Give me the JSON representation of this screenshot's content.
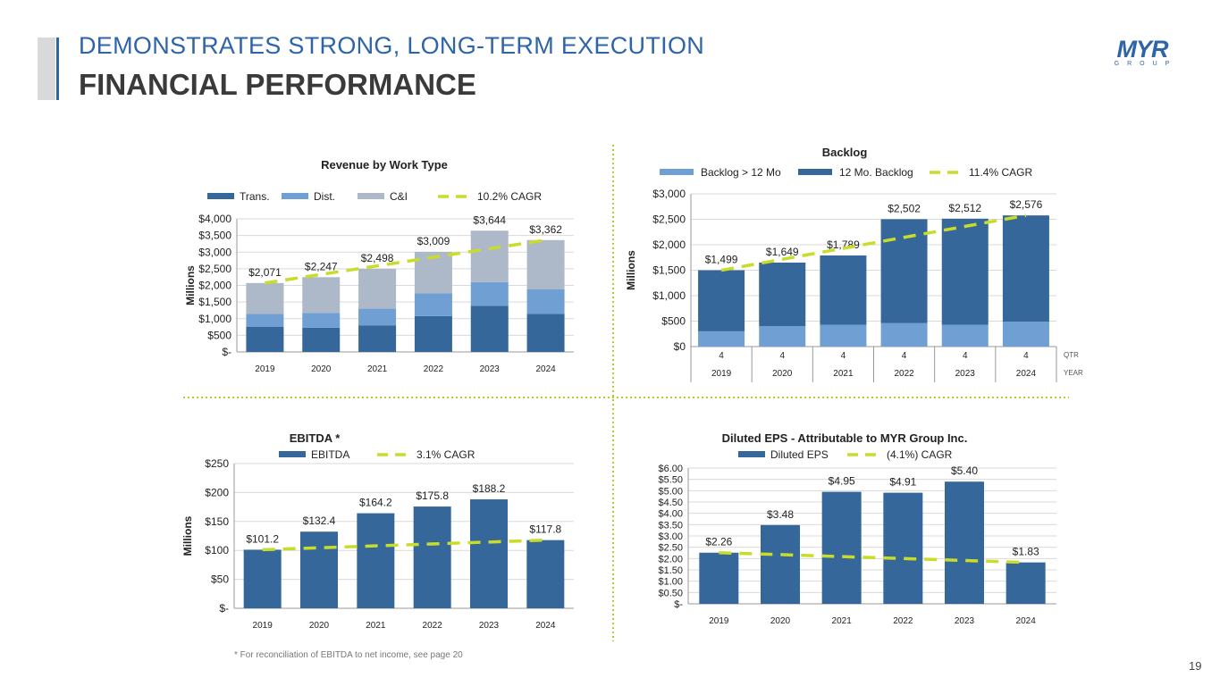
{
  "header": {
    "title_line1": "DEMONSTRATES STRONG, LONG-TERM EXECUTION",
    "title_line2": "FINANCIAL PERFORMANCE"
  },
  "logo": {
    "text": "MYR",
    "sub": "GROUP"
  },
  "footnote": "* For reconciliation of EBITDA to net income, see page 20",
  "page_number": "19",
  "colors": {
    "dark_blue": "#35679a",
    "light_blue": "#6f9fd3",
    "gray": "#adb8c9",
    "cagr": "#c9dc2a",
    "title": "#2e64a8"
  },
  "chart_data": [
    {
      "type": "bar",
      "stacked": true,
      "title": "Revenue by Work Type",
      "ylabel": "Millions",
      "ylim": [
        0,
        4000
      ],
      "yticks": [
        0,
        500,
        1000,
        1500,
        2000,
        2500,
        3000,
        3500,
        4000
      ],
      "ytick_labels": [
        "$-",
        "$500",
        "$1,000",
        "$1,500",
        "$2,000",
        "$2,500",
        "$3,000",
        "$3,500",
        "$4,000"
      ],
      "categories": [
        "2019",
        "2020",
        "2021",
        "2022",
        "2023",
        "2024"
      ],
      "series": [
        {
          "name": "Trans.",
          "values": [
            760,
            730,
            800,
            1080,
            1390,
            1140
          ],
          "color": "#35679a"
        },
        {
          "name": "Dist.",
          "values": [
            380,
            440,
            500,
            680,
            710,
            740
          ],
          "color": "#6f9fd3"
        },
        {
          "name": "C&I",
          "values": [
            931,
            1077,
            1198,
            1249,
            1544,
            1482
          ],
          "color": "#adb8c9"
        }
      ],
      "totals": [
        2071,
        2247,
        2498,
        3009,
        3644,
        3362
      ],
      "total_labels": [
        "$2,071",
        "$2,247",
        "$2,498",
        "$3,009",
        "$3,644",
        "$3,362"
      ],
      "cagr": {
        "name": "10.2% CAGR",
        "start": 2071,
        "end": 3362
      },
      "legend": "top"
    },
    {
      "type": "bar",
      "stacked": true,
      "title": "Backlog",
      "ylabel": "Millions",
      "ylim": [
        0,
        3000
      ],
      "yticks": [
        0,
        500,
        1000,
        1500,
        2000,
        2500,
        3000
      ],
      "ytick_labels": [
        "$0",
        "$500",
        "$1,000",
        "$1,500",
        "$2,000",
        "$2,500",
        "$3,000"
      ],
      "categories": [
        "2019",
        "2020",
        "2021",
        "2022",
        "2023",
        "2024"
      ],
      "quarters": [
        "4",
        "4",
        "4",
        "4",
        "4",
        "4"
      ],
      "row_labels": [
        "QTR",
        "YEAR"
      ],
      "series": [
        {
          "name": "Backlog > 12 Mo",
          "values": [
            300,
            400,
            430,
            460,
            430,
            490
          ],
          "color": "#6f9fd3"
        },
        {
          "name": "12 Mo. Backlog",
          "values": [
            1199,
            1249,
            1359,
            2042,
            2082,
            2086
          ],
          "color": "#35679a"
        }
      ],
      "totals": [
        1499,
        1649,
        1789,
        2502,
        2512,
        2576
      ],
      "total_labels": [
        "$1,499",
        "$1,649",
        "$1,789",
        "$2,502",
        "$2,512",
        "$2,576"
      ],
      "cagr": {
        "name": "11.4% CAGR",
        "start": 1499,
        "end": 2576
      },
      "legend": "top"
    },
    {
      "type": "bar",
      "title": "EBITDA *",
      "ylabel": "Millions",
      "ylim": [
        0,
        250
      ],
      "yticks": [
        0,
        50,
        100,
        150,
        200,
        250
      ],
      "ytick_labels": [
        "$-",
        "$50",
        "$100",
        "$150",
        "$200",
        "$250"
      ],
      "categories": [
        "2019",
        "2020",
        "2021",
        "2022",
        "2023",
        "2024"
      ],
      "series": [
        {
          "name": "EBITDA",
          "values": [
            101.2,
            132.4,
            164.2,
            175.8,
            188.2,
            117.8
          ],
          "color": "#35679a"
        }
      ],
      "totals": [
        101.2,
        132.4,
        164.2,
        175.8,
        188.2,
        117.8
      ],
      "total_labels": [
        "$101.2",
        "$132.4",
        "$164.2",
        "$175.8",
        "$188.2",
        "$117.8"
      ],
      "cagr": {
        "name": "3.1% CAGR",
        "start": 101.2,
        "end": 117.8
      },
      "legend": "top"
    },
    {
      "type": "bar",
      "title": "Diluted EPS - Attributable to MYR Group Inc.",
      "ylabel": "",
      "ylim": [
        0,
        6
      ],
      "yticks": [
        0,
        0.5,
        1,
        1.5,
        2,
        2.5,
        3,
        3.5,
        4,
        4.5,
        5,
        5.5,
        6
      ],
      "ytick_labels": [
        "$-",
        "$0.50",
        "$1.00",
        "$1.50",
        "$2.00",
        "$2.50",
        "$3.00",
        "$3.50",
        "$4.00",
        "$4.50",
        "$5.00",
        "$5.50",
        "$6.00"
      ],
      "categories": [
        "2019",
        "2020",
        "2021",
        "2022",
        "2023",
        "2024"
      ],
      "series": [
        {
          "name": "Diluted EPS",
          "values": [
            2.26,
            3.48,
            4.95,
            4.91,
            5.4,
            1.83
          ],
          "color": "#35679a"
        }
      ],
      "totals": [
        2.26,
        3.48,
        4.95,
        4.91,
        5.4,
        1.83
      ],
      "total_labels": [
        "$2.26",
        "$3.48",
        "$4.95",
        "$4.91",
        "$5.40",
        "$1.83"
      ],
      "cagr": {
        "name": "(4.1%) CAGR",
        "start": 2.26,
        "end": 1.83
      },
      "legend": "top"
    }
  ]
}
